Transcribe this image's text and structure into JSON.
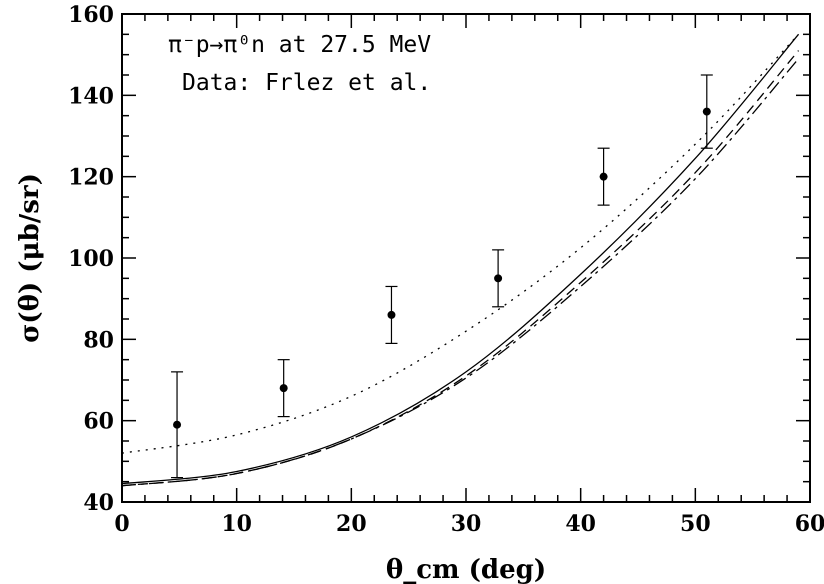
{
  "chart_data": {
    "type": "scatter",
    "xlabel": "θ_cm (deg)",
    "ylabel": "σ(θ) (μb/sr)",
    "xlim": [
      0,
      60
    ],
    "ylim": [
      40,
      160
    ],
    "xticks": [
      0,
      10,
      20,
      30,
      40,
      50,
      60
    ],
    "yticks": [
      40,
      60,
      80,
      100,
      120,
      140,
      160
    ],
    "grid": false,
    "annotations": [
      "π⁻p→π⁰n at 27.5 MeV",
      "Data: Frlez et al."
    ],
    "data_points": [
      {
        "x": 4.8,
        "y": 59,
        "err": 13
      },
      {
        "x": 14.1,
        "y": 68,
        "err": 7
      },
      {
        "x": 23.5,
        "y": 86,
        "err": 7
      },
      {
        "x": 32.8,
        "y": 95,
        "err": 7
      },
      {
        "x": 42.0,
        "y": 120,
        "err": 7
      },
      {
        "x": 51.0,
        "y": 136,
        "err": 9
      }
    ],
    "series": [
      {
        "style": "solid",
        "x": [
          0,
          10,
          20,
          30,
          40,
          50,
          59
        ],
        "values": [
          44.5,
          47.5,
          56.0,
          72.0,
          96.0,
          124.5,
          155.0
        ]
      },
      {
        "style": "dotted",
        "x": [
          0,
          10,
          20,
          30,
          40,
          50,
          59
        ],
        "values": [
          52.0,
          56.5,
          66.0,
          82.0,
          102.5,
          128.0,
          155.0
        ]
      },
      {
        "style": "dashed",
        "x": [
          0,
          10,
          20,
          30,
          40,
          50,
          59
        ],
        "values": [
          44.0,
          47.0,
          55.5,
          71.0,
          94.0,
          121.0,
          151.0
        ]
      },
      {
        "style": "dashdot",
        "x": [
          0,
          10,
          20,
          30,
          40,
          50,
          59
        ],
        "values": [
          44.0,
          47.0,
          55.5,
          70.5,
          93.0,
          119.5,
          149.0
        ]
      }
    ]
  }
}
